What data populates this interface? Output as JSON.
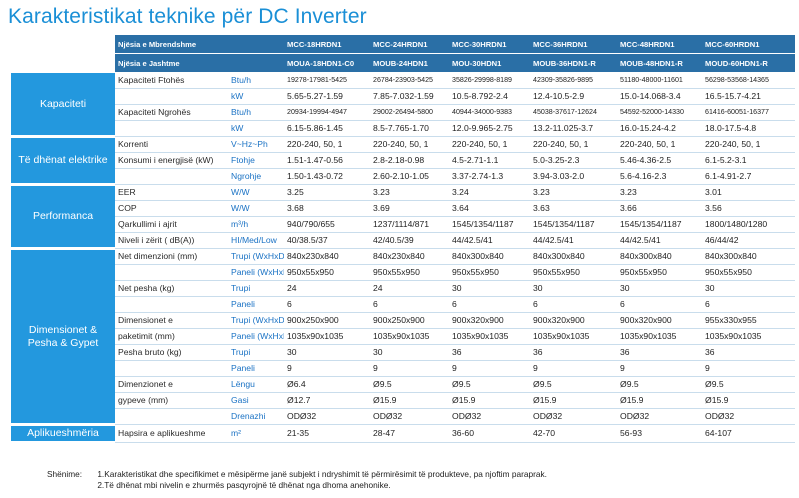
{
  "title": "Karakteristikat teknike për DC Inverter",
  "header": {
    "indoor_label": "Njësia e Mbrendshme",
    "outdoor_label": "Njësia e Jashtme",
    "indoor_models": [
      "MCC-18HRDN1",
      "MCC-24HRDN1",
      "MCC-30HRDN1",
      "MCC-36HRDN1",
      "MCC-48HRDN1",
      "MCC-60HRDN1"
    ],
    "outdoor_models": [
      "MOUA-18HDN1-C0",
      "MOUB-24HDN1",
      "MOU-30HDN1",
      "MOUB-36HDN1-R",
      "MOUB-48HDN1-R",
      "MOUD-60HDN1-R"
    ]
  },
  "sections": {
    "capacity": "Kapaciteti",
    "electrical": "Të dhënat elektrike",
    "performance": "Performanca",
    "dimensions": "Dimensionet & Pesha & Gypet",
    "application": "Aplikueshmëria"
  },
  "rows": {
    "cool_btu": {
      "label": "Kapaciteti Ftohës",
      "unit": "Btu/h",
      "values": [
        "19278-17981-5425",
        "26784-23903-5425",
        "35826-29998-8189",
        "42309-35826-9895",
        "51180-48000-11601",
        "56298-53568-14365"
      ]
    },
    "cool_kw": {
      "label": "",
      "unit": "kW",
      "values": [
        "5.65-5.27-1.59",
        "7.85-7.032-1.59",
        "10.5-8.792-2.4",
        "12.4-10.5-2.9",
        "15.0-14.068-3.4",
        "16.5-15.7-4.21"
      ]
    },
    "heat_btu": {
      "label": "Kapaciteti Ngrohës",
      "unit": "Btu/h",
      "values": [
        "20934-19994-4947",
        "29002-26494-5800",
        "40944-34000-9383",
        "45038-37617-12624",
        "54592-52000-14330",
        "61416-60051-16377"
      ]
    },
    "heat_kw": {
      "label": "",
      "unit": "kW",
      "values": [
        "6.15-5.86-1.45",
        "8.5-7.765-1.70",
        "12.0-9.965-2.75",
        "13.2-11.025-3.7",
        "16.0-15.24-4.2",
        "18.0-17.5-4.8"
      ]
    },
    "current": {
      "label": "Korrenti",
      "unit": "V~Hz~Ph",
      "values": [
        "220-240, 50, 1",
        "220-240, 50, 1",
        "220-240, 50, 1",
        "220-240, 50, 1",
        "220-240, 50, 1",
        "220-240, 50, 1"
      ]
    },
    "power_cool": {
      "label": "Konsumi i energjisë (kW)",
      "unit": "Ftohje",
      "values": [
        "1.51-1.47-0.56",
        "2.8-2.18-0.98",
        "4.5-2.71-1.1",
        "5.0-3.25-2.3",
        "5.46-4.36-2.5",
        "6.1-5.2-3.1"
      ]
    },
    "power_heat": {
      "label": "",
      "unit": "Ngrohje",
      "values": [
        "1.50-1.43-0.72",
        "2.60-2.10-1.05",
        "3.37-2.74-1.3",
        "3.94-3.03-2.0",
        "5.6-4.16-2.3",
        "6.1-4.91-2.7"
      ]
    },
    "eer": {
      "label": "EER",
      "unit": "W/W",
      "values": [
        "3.25",
        "3.23",
        "3.24",
        "3.23",
        "3.23",
        "3.01"
      ]
    },
    "cop": {
      "label": "COP",
      "unit": "W/W",
      "values": [
        "3.68",
        "3.69",
        "3.64",
        "3.63",
        "3.66",
        "3.56"
      ]
    },
    "airflow": {
      "label": "Qarkullimi i ajrit",
      "unit": "m³/h",
      "values": [
        "940/790/655",
        "1237/1114/871",
        "1545/1354/1187",
        "1545/1354/1187",
        "1545/1354/1187",
        "1800/1480/1280"
      ]
    },
    "noise": {
      "label": "Niveli i zërit ( dB(A))",
      "unit": "HI/Med/Low",
      "values": [
        "40/38.5/37",
        "42/40.5/39",
        "44/42.5/41",
        "44/42.5/41",
        "44/42.5/41",
        "46/44/42"
      ]
    },
    "net_dim_body": {
      "label": "Net dimenzioni (mm)",
      "unit": "Trupi   (WxHxD)",
      "values": [
        "840x230x840",
        "840x230x840",
        "840x300x840",
        "840x300x840",
        "840x300x840",
        "840x300x840"
      ]
    },
    "net_dim_panel": {
      "label": "",
      "unit": "Paneli (WxHxD)",
      "values": [
        "950x55x950",
        "950x55x950",
        "950x55x950",
        "950x55x950",
        "950x55x950",
        "950x55x950"
      ]
    },
    "net_w_body": {
      "label": "Net pesha (kg)",
      "unit": "Trupi",
      "values": [
        "24",
        "24",
        "30",
        "30",
        "30",
        "30"
      ]
    },
    "net_w_panel": {
      "label": "",
      "unit": "Paneli",
      "values": [
        "6",
        "6",
        "6",
        "6",
        "6",
        "6"
      ]
    },
    "pack_dim_body": {
      "label": "Dimensionet e",
      "unit": "Trupi  (WxHxD)",
      "values": [
        "900x250x900",
        "900x250x900",
        "900x320x900",
        "900x320x900",
        "900x320x900",
        "955x330x955"
      ]
    },
    "pack_dim_panel": {
      "label": "paketimit (mm)",
      "unit": "Paneli (WxHxD)",
      "values": [
        "1035x90x1035",
        "1035x90x1035",
        "1035x90x1035",
        "1035x90x1035",
        "1035x90x1035",
        "1035x90x1035"
      ]
    },
    "gross_body": {
      "label": "Pesha bruto (kg)",
      "unit": "Trupi",
      "values": [
        "30",
        "30",
        "36",
        "36",
        "36",
        "36"
      ]
    },
    "gross_panel": {
      "label": "",
      "unit": "Paneli",
      "values": [
        "9",
        "9",
        "9",
        "9",
        "9",
        "9"
      ]
    },
    "pipe_liquid": {
      "label": "Dimenzionet e",
      "unit": "Lëngu",
      "values": [
        "Ø6.4",
        "Ø9.5",
        "Ø9.5",
        "Ø9.5",
        "Ø9.5",
        "Ø9.5"
      ]
    },
    "pipe_gas": {
      "label": "gypeve (mm)",
      "unit": "Gasi",
      "values": [
        "Ø12.7",
        "Ø15.9",
        "Ø15.9",
        "Ø15.9",
        "Ø15.9",
        "Ø15.9"
      ]
    },
    "pipe_drain": {
      "label": "",
      "unit": "Drenazhi",
      "values": [
        "ODØ32",
        "ODØ32",
        "ODØ32",
        "ODØ32",
        "ODØ32",
        "ODØ32"
      ]
    },
    "room_area": {
      "label": "Hapsira e aplikueshme",
      "unit": "m²",
      "values": [
        "21-35",
        "28-47",
        "36-60",
        "42-70",
        "56-93",
        "64-107"
      ]
    }
  },
  "footnotes": {
    "heading": "Shënime:",
    "note1": "1.Karakteristikat dhe specifikimet e mësipërme  janë subjekt i ndryshimit të përmirësimit të produkteve, pa njoftim paraprak.",
    "note2": "2.Të dhënat mbi nivelin e zhurmës pasqyrojnë të dhënat nga dhoma anehonike."
  },
  "colors": {
    "title": "#1a8fd6",
    "section_bg": "#2398de",
    "header_bg": "#2a6fa6",
    "unit_text": "#1a72c4",
    "row_border": "#c9ddec"
  }
}
